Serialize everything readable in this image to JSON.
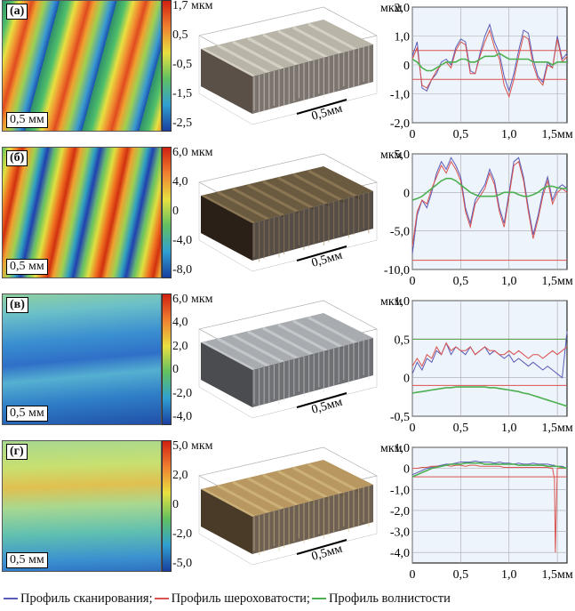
{
  "colors": {
    "scan": "#5b5bb8",
    "roughness": "#d9534f",
    "waviness": "#4caf50",
    "axis": "#000000",
    "grid": "#a8a8a8"
  },
  "panels": [
    {
      "label": "(а)",
      "scale": "0,5 мм",
      "colorbar_ticks": [
        "1,7 мкм",
        "0,5",
        "-0,5",
        "-1,5",
        "-2,5"
      ],
      "map_style": "diagonal-orange",
      "view3d": {
        "style": "light",
        "scale": "0,5мм"
      },
      "chart_data": {
        "type": "line",
        "title": "",
        "ylabel": "мкм",
        "ylim": [
          -2.0,
          2.0
        ],
        "y_ticks": [
          "2,0",
          "1,0",
          "0",
          "-1,0",
          "-2,0"
        ],
        "x_ticks": [
          "0",
          "0,5",
          "1,0",
          "1,5мм"
        ],
        "xlim": [
          0,
          1.6
        ],
        "ref_lines_roughness": [
          0.5,
          -0.5
        ],
        "ref_lines_waviness": [],
        "x": [
          0,
          0.05,
          0.1,
          0.15,
          0.2,
          0.25,
          0.3,
          0.35,
          0.4,
          0.45,
          0.5,
          0.55,
          0.6,
          0.65,
          0.7,
          0.75,
          0.8,
          0.85,
          0.9,
          0.95,
          1.0,
          1.05,
          1.1,
          1.15,
          1.2,
          1.25,
          1.3,
          1.35,
          1.4,
          1.45,
          1.5,
          1.55,
          1.6
        ],
        "series": [
          {
            "name": "Профиль сканирования",
            "values": [
              0.3,
              0.8,
              -0.8,
              -0.9,
              -0.5,
              -0.3,
              0.1,
              0.2,
              0.0,
              0.6,
              0.9,
              0.8,
              -0.2,
              -0.3,
              0.4,
              1.0,
              1.4,
              0.8,
              0.4,
              -0.4,
              -0.9,
              -0.3,
              0.5,
              1.2,
              1.1,
              0.2,
              -0.4,
              -0.6,
              0.1,
              -0.1,
              1.0,
              0.2,
              0.4
            ]
          },
          {
            "name": "Профиль шероховатости",
            "values": [
              0.2,
              0.6,
              -0.7,
              -0.8,
              -0.5,
              -0.2,
              0.0,
              0.1,
              -0.1,
              0.5,
              0.8,
              0.7,
              -0.3,
              -0.3,
              0.3,
              0.8,
              1.2,
              0.6,
              0.2,
              -0.7,
              -1.1,
              -0.5,
              0.3,
              1.0,
              0.9,
              0.0,
              -0.5,
              -0.7,
              0.0,
              -0.1,
              0.9,
              0.1,
              0.3
            ]
          },
          {
            "name": "Профиль волнистости",
            "values": [
              0.2,
              0.1,
              -0.1,
              -0.2,
              -0.2,
              -0.1,
              0.0,
              0.1,
              0.1,
              0.1,
              0.2,
              0.2,
              0.1,
              0.1,
              0.2,
              0.3,
              0.3,
              0.3,
              0.4,
              0.3,
              0.2,
              0.2,
              0.2,
              0.2,
              0.2,
              0.1,
              0.1,
              0.1,
              0.1,
              0.0,
              0.1,
              0.1,
              0.1
            ]
          }
        ]
      }
    },
    {
      "label": "(б)",
      "scale": "0,5 мм",
      "colorbar_ticks": [
        "6,0 мкм",
        "4,0",
        "0",
        "-4,0",
        "-8,0"
      ],
      "map_style": "diagonal-orange-strong",
      "view3d": {
        "style": "dark",
        "scale": "0,5мм"
      },
      "chart_data": {
        "type": "line",
        "title": "",
        "ylabel": "мкм",
        "ylim": [
          -10.0,
          5.0
        ],
        "y_ticks": [
          "5,0",
          "0",
          "-5,0",
          "-10,0"
        ],
        "x_ticks": [
          "0",
          "0,5",
          "1,0",
          "1,5мм"
        ],
        "xlim": [
          0,
          1.6
        ],
        "ref_lines_roughness": [
          -8.8
        ],
        "ref_lines_waviness": [],
        "x": [
          0,
          0.05,
          0.1,
          0.15,
          0.2,
          0.25,
          0.3,
          0.35,
          0.4,
          0.45,
          0.5,
          0.55,
          0.6,
          0.65,
          0.7,
          0.75,
          0.8,
          0.85,
          0.9,
          0.95,
          1.0,
          1.05,
          1.1,
          1.15,
          1.2,
          1.25,
          1.3,
          1.35,
          1.4,
          1.45,
          1.5,
          1.55,
          1.6
        ],
        "series": [
          {
            "name": "Профиль сканирования",
            "values": [
              -8.0,
              -3.0,
              -1.0,
              -2.0,
              0.0,
              2.5,
              4.0,
              3.0,
              4.5,
              3.5,
              2.0,
              -2.0,
              -4.0,
              -1.0,
              0.0,
              1.0,
              3.0,
              1.5,
              -2.0,
              -4.0,
              0.0,
              4.0,
              4.5,
              2.0,
              -2.0,
              -5.5,
              -3.0,
              0.0,
              2.0,
              -1.0,
              0.5,
              1.0,
              0.5
            ]
          },
          {
            "name": "Профиль шероховатости",
            "values": [
              -7.0,
              -2.5,
              -1.0,
              -1.5,
              0.5,
              2.0,
              3.5,
              2.5,
              4.0,
              3.0,
              1.5,
              -2.5,
              -4.5,
              -1.5,
              -0.5,
              0.5,
              2.5,
              1.0,
              -2.5,
              -4.5,
              -0.5,
              3.5,
              4.0,
              1.5,
              -2.5,
              -6.0,
              -3.5,
              -0.5,
              1.5,
              -1.5,
              0.0,
              0.5,
              0.0
            ]
          },
          {
            "name": "Профиль волнистости",
            "values": [
              -1.0,
              -0.8,
              -0.5,
              0.0,
              0.5,
              1.0,
              1.5,
              1.8,
              1.8,
              1.5,
              1.0,
              0.5,
              0.0,
              -0.3,
              -0.5,
              -0.5,
              -0.5,
              -0.5,
              -0.3,
              0.0,
              0.0,
              0.0,
              -0.3,
              -0.5,
              -0.5,
              -0.3,
              0.0,
              0.5,
              0.8,
              0.8,
              0.6,
              0.5,
              0.5
            ]
          }
        ]
      }
    },
    {
      "label": "(в)",
      "scale": "0,5 мм",
      "colorbar_ticks": [
        "6,0 мкм",
        "4,0",
        "2,0",
        "0",
        "-2,0",
        "-4,0"
      ],
      "map_style": "horizontal-blue",
      "view3d": {
        "style": "grey",
        "scale": "0,5мм"
      },
      "chart_data": {
        "type": "line",
        "title": "",
        "ylabel": "мкм",
        "ylim": [
          -0.5,
          1.0
        ],
        "y_ticks": [
          "1,0",
          "0,5",
          "0",
          "-0,5"
        ],
        "x_ticks": [
          "0",
          "0,5",
          "1,0",
          "1,5мм"
        ],
        "xlim": [
          0,
          1.6
        ],
        "ref_lines_roughness": [
          0.5,
          -0.1
        ],
        "ref_lines_waviness": [
          0.5
        ],
        "x": [
          0,
          0.05,
          0.1,
          0.15,
          0.2,
          0.25,
          0.3,
          0.35,
          0.4,
          0.45,
          0.5,
          0.55,
          0.6,
          0.65,
          0.7,
          0.75,
          0.8,
          0.85,
          0.9,
          0.95,
          1.0,
          1.05,
          1.1,
          1.15,
          1.2,
          1.25,
          1.3,
          1.35,
          1.4,
          1.45,
          1.5,
          1.55,
          1.6
        ],
        "series": [
          {
            "name": "Профиль сканирования",
            "values": [
              0.05,
              0.2,
              0.1,
              0.25,
              0.2,
              0.35,
              0.3,
              0.45,
              0.3,
              0.4,
              0.35,
              0.3,
              0.4,
              0.3,
              0.35,
              0.4,
              0.3,
              0.35,
              0.3,
              0.25,
              0.3,
              0.2,
              0.25,
              0.2,
              0.15,
              0.2,
              0.15,
              0.1,
              0.15,
              0.1,
              0.05,
              0.0,
              0.6
            ]
          },
          {
            "name": "Профиль шероховатости",
            "values": [
              0.15,
              0.25,
              0.15,
              0.3,
              0.25,
              0.4,
              0.3,
              0.45,
              0.35,
              0.4,
              0.35,
              0.35,
              0.4,
              0.3,
              0.35,
              0.4,
              0.35,
              0.35,
              0.3,
              0.3,
              0.35,
              0.3,
              0.35,
              0.3,
              0.25,
              0.3,
              0.3,
              0.25,
              0.3,
              0.35,
              0.3,
              0.35,
              0.4
            ]
          },
          {
            "name": "Профиль волнистости",
            "values": [
              -0.2,
              -0.19,
              -0.18,
              -0.17,
              -0.16,
              -0.15,
              -0.14,
              -0.13,
              -0.13,
              -0.12,
              -0.12,
              -0.12,
              -0.12,
              -0.12,
              -0.12,
              -0.12,
              -0.13,
              -0.13,
              -0.14,
              -0.15,
              -0.16,
              -0.17,
              -0.18,
              -0.2,
              -0.21,
              -0.23,
              -0.25,
              -0.27,
              -0.29,
              -0.31,
              -0.33,
              -0.35,
              -0.37
            ]
          }
        ]
      }
    },
    {
      "label": "(г)",
      "scale": "0,5 мм",
      "colorbar_ticks": [
        "5,0 мкм",
        "2,0",
        "0",
        "-2,0",
        "-5,0"
      ],
      "map_style": "flat-green",
      "view3d": {
        "style": "brown",
        "scale": "0,5мм"
      },
      "chart_data": {
        "type": "line",
        "title": "",
        "ylabel": "мкм",
        "ylim": [
          -4.5,
          1.0
        ],
        "y_ticks": [
          "1,0",
          "0",
          "-1,0",
          "-2,0",
          "-3,0",
          "-4,0"
        ],
        "x_ticks": [
          "0",
          "0,5",
          "1,0",
          "1,5мм"
        ],
        "xlim": [
          0,
          1.6
        ],
        "ref_lines_roughness": [
          -0.4
        ],
        "ref_lines_waviness": [],
        "x": [
          0,
          0.05,
          0.1,
          0.15,
          0.2,
          0.25,
          0.3,
          0.35,
          0.4,
          0.45,
          0.5,
          0.55,
          0.6,
          0.65,
          0.7,
          0.75,
          0.8,
          0.85,
          0.9,
          0.95,
          1.0,
          1.05,
          1.1,
          1.15,
          1.2,
          1.25,
          1.3,
          1.35,
          1.4,
          1.45,
          1.47,
          1.48,
          1.5,
          1.55,
          1.6
        ],
        "series": [
          {
            "name": "Профиль сканирования",
            "values": [
              -0.3,
              -0.2,
              -0.1,
              0.0,
              0.05,
              0.1,
              0.15,
              0.2,
              0.2,
              0.25,
              0.3,
              0.3,
              0.3,
              0.35,
              0.3,
              0.3,
              0.3,
              0.25,
              0.3,
              0.25,
              0.25,
              0.2,
              0.25,
              0.2,
              0.2,
              0.25,
              0.2,
              0.2,
              0.2,
              0.15,
              0.15,
              0.1,
              0.1,
              0.1,
              0.0
            ]
          },
          {
            "name": "Профиль шероховатости",
            "values": [
              0.0,
              0.0,
              0.05,
              0.05,
              0.1,
              0.1,
              0.1,
              0.15,
              0.1,
              0.15,
              0.15,
              0.1,
              0.15,
              0.15,
              0.1,
              0.1,
              0.1,
              0.1,
              0.1,
              0.05,
              0.05,
              0.05,
              0.05,
              0.05,
              0.05,
              0.05,
              0.05,
              0.05,
              0.05,
              0.0,
              -0.5,
              -4.0,
              0.0,
              0.0,
              0.0
            ]
          },
          {
            "name": "Профиль волнистости",
            "values": [
              -0.4,
              -0.3,
              -0.2,
              -0.1,
              0.0,
              0.05,
              0.1,
              0.15,
              0.2,
              0.2,
              0.2,
              0.25,
              0.25,
              0.25,
              0.25,
              0.2,
              0.2,
              0.2,
              0.2,
              0.2,
              0.2,
              0.2,
              0.15,
              0.15,
              0.15,
              0.15,
              0.15,
              0.15,
              0.1,
              0.1,
              0.1,
              0.1,
              0.1,
              0.05,
              0.0
            ]
          }
        ]
      }
    }
  ],
  "legend": [
    {
      "label": "Профиль сканирования;",
      "color_key": "scan"
    },
    {
      "label": "Профиль шероховатости;",
      "color_key": "roughness"
    },
    {
      "label": "Профиль волнистости",
      "color_key": "waviness"
    }
  ]
}
